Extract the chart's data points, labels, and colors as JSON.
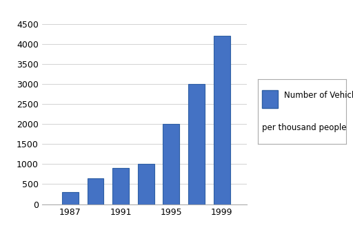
{
  "years": [
    1987,
    1989,
    1991,
    1993,
    1995,
    1997,
    1999
  ],
  "values": [
    300,
    650,
    900,
    1000,
    2000,
    3000,
    4200
  ],
  "bar_color": "#4472C4",
  "bar_edge_color": "#2E5FA3",
  "ylim": [
    0,
    4750
  ],
  "yticks": [
    0,
    500,
    1000,
    1500,
    2000,
    2500,
    3000,
    3500,
    4000,
    4500
  ],
  "xtick_labels": [
    "1987",
    "1991",
    "1995",
    "1999"
  ],
  "xtick_positions": [
    1987,
    1991,
    1995,
    1999
  ],
  "legend_label_line1": "Number of Vehicle",
  "legend_label_line2": "per thousand people",
  "background_color": "#ffffff",
  "grid_color": "#c0c0c0",
  "bar_width": 1.3,
  "xlim_left": 1984.8,
  "xlim_right": 2001.0
}
